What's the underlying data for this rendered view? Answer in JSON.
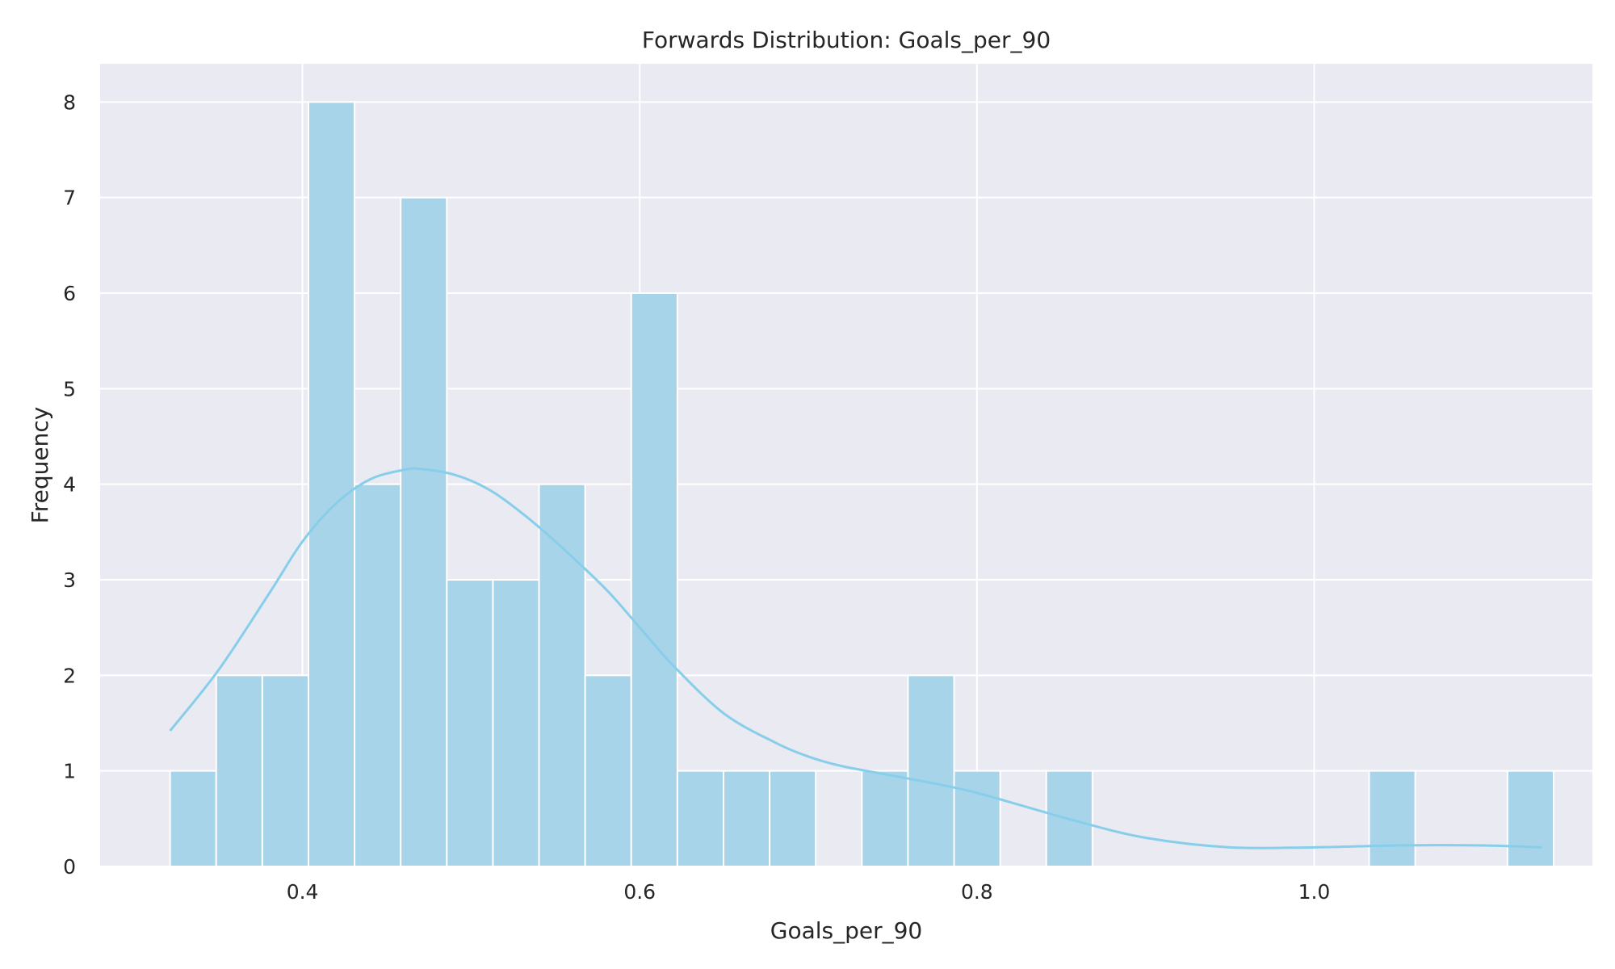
{
  "chart_data": {
    "type": "bar",
    "title": "Forwards Distribution: Goals_per_90",
    "xlabel": "Goals_per_90",
    "ylabel": "Frequency",
    "xlim": [
      0.28,
      1.165
    ],
    "ylim": [
      0,
      8.4
    ],
    "x_ticks": [
      "0.4",
      "0.6",
      "0.8",
      "1.0"
    ],
    "x_tick_values": [
      0.4,
      0.6,
      0.8,
      1.0
    ],
    "y_ticks": [
      "0",
      "1",
      "2",
      "3",
      "4",
      "5",
      "6",
      "7",
      "8"
    ],
    "y_tick_values": [
      0,
      1,
      2,
      3,
      4,
      5,
      6,
      7,
      8
    ],
    "bins": {
      "start": 0.3215,
      "width": 0.02735,
      "counts": [
        1,
        2,
        2,
        8,
        4,
        7,
        3,
        3,
        4,
        2,
        6,
        1,
        1,
        1,
        0,
        1,
        2,
        1,
        0,
        1,
        0,
        0,
        0,
        0,
        0,
        0,
        1,
        0,
        0,
        1
      ]
    },
    "kde": {
      "x": [
        0.3215,
        0.35,
        0.38,
        0.4,
        0.42,
        0.44,
        0.46,
        0.47,
        0.49,
        0.51,
        0.53,
        0.55,
        0.58,
        0.6,
        0.62,
        0.65,
        0.68,
        0.7,
        0.72,
        0.75,
        0.78,
        0.8,
        0.83,
        0.86,
        0.9,
        0.95,
        1.0,
        1.05,
        1.1,
        1.135
      ],
      "y": [
        1.42,
        2.05,
        2.85,
        3.4,
        3.8,
        4.05,
        4.15,
        4.16,
        4.1,
        3.95,
        3.7,
        3.4,
        2.9,
        2.5,
        2.1,
        1.6,
        1.3,
        1.15,
        1.05,
        0.95,
        0.85,
        0.77,
        0.62,
        0.47,
        0.3,
        0.2,
        0.2,
        0.22,
        0.22,
        0.2
      ]
    },
    "grid": true,
    "colors": {
      "bar_fill": "#a8d4ea",
      "bar_edge": "#ffffff",
      "line": "#87ceeb",
      "plot_bg": "#eaeaf2",
      "grid": "#ffffff",
      "text": "#262626"
    }
  }
}
